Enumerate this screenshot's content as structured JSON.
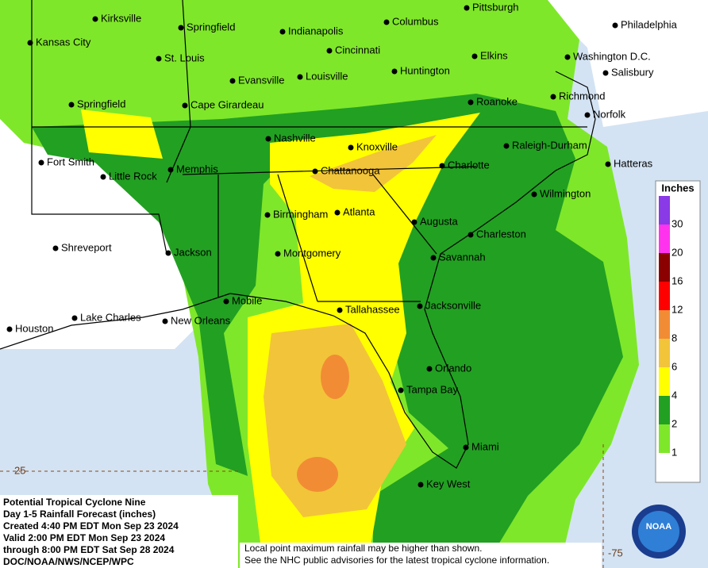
{
  "map": {
    "cities": [
      "Kirksville",
      "Springfield",
      "Indianapolis",
      "Columbus",
      "Pittsburgh",
      "Philadelphia",
      "Kansas City",
      "St. Louis",
      "Cincinnati",
      "Elkins",
      "Washington D.C.",
      "Salisbury",
      "Evansville",
      "Louisville",
      "Huntington",
      "Springfield",
      "Cape Girardeau",
      "Roanoke",
      "Richmond",
      "Norfolk",
      "Nashville",
      "Knoxville",
      "Raleigh-Durham",
      "Fort Smith",
      "Little Rock",
      "Memphis",
      "Chattanooga",
      "Charlotte",
      "Hatteras",
      "Wilmington",
      "Birmingham",
      "Atlanta",
      "Augusta",
      "Charleston",
      "Shreveport",
      "Jackson",
      "Montgomery",
      "Savannah",
      "Mobile",
      "Tallahassee",
      "Jacksonville",
      "Lake Charles",
      "New Orleans",
      "Houston",
      "Orlando",
      "Tampa Bay",
      "Miami",
      "Key West"
    ],
    "grid_labels": [
      "25",
      "-75"
    ],
    "legend": {
      "title": "Inches",
      "levels": [
        1,
        2,
        4,
        6,
        8,
        12,
        16,
        20,
        30
      ],
      "colors": [
        "#ffffff",
        "#7fe72a",
        "#22a022",
        "#ffff00",
        "#f2c43a",
        "#f28c34",
        "#ff0000",
        "#8b0000",
        "#ff33ee",
        "#8a3ae6"
      ]
    },
    "info": [
      "Potential Tropical Cyclone Nine",
      "Day 1-5 Rainfall Forecast (inches)",
      "Created 4:40 PM EDT Mon Sep 23 2024",
      "Valid 2:00 PM EDT Mon Sep 23 2024",
      "through 8:00 PM EDT Sat Sep 28 2024",
      "DOC/NOAA/NWS/NCEP/WPC"
    ],
    "footnote": [
      "Local point maximum rainfall may be higher than shown.",
      "See the NHC public advisories for the latest tropical cyclone information."
    ],
    "logo": "NOAA"
  }
}
